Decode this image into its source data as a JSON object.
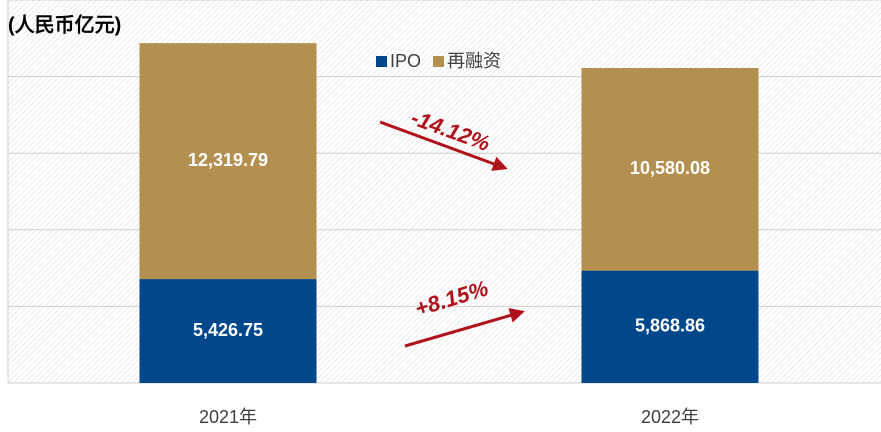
{
  "chart_data": {
    "type": "stacked_bar",
    "title": "(人民币亿元)",
    "categories": [
      "2021年",
      "2022年"
    ],
    "series": [
      {
        "name": "IPO",
        "color": "#00468b",
        "values": [
          5426.75,
          5868.86
        ],
        "value_labels": [
          "5,426.75",
          "5,868.86"
        ]
      },
      {
        "name": "再融资",
        "color": "#b38f50",
        "values": [
          12319.79,
          10580.08
        ],
        "value_labels": [
          "12,319.79",
          "10,580.08"
        ]
      }
    ],
    "ylim": [
      0,
      20000
    ],
    "yticks": [
      0,
      4000,
      8000,
      12000,
      16000,
      20000
    ],
    "grid": true,
    "legend": "top",
    "annotations": [
      {
        "text": "-14.12%",
        "color": "#b0121b"
      },
      {
        "text": "+8.15%",
        "color": "#b0121b"
      }
    ]
  }
}
